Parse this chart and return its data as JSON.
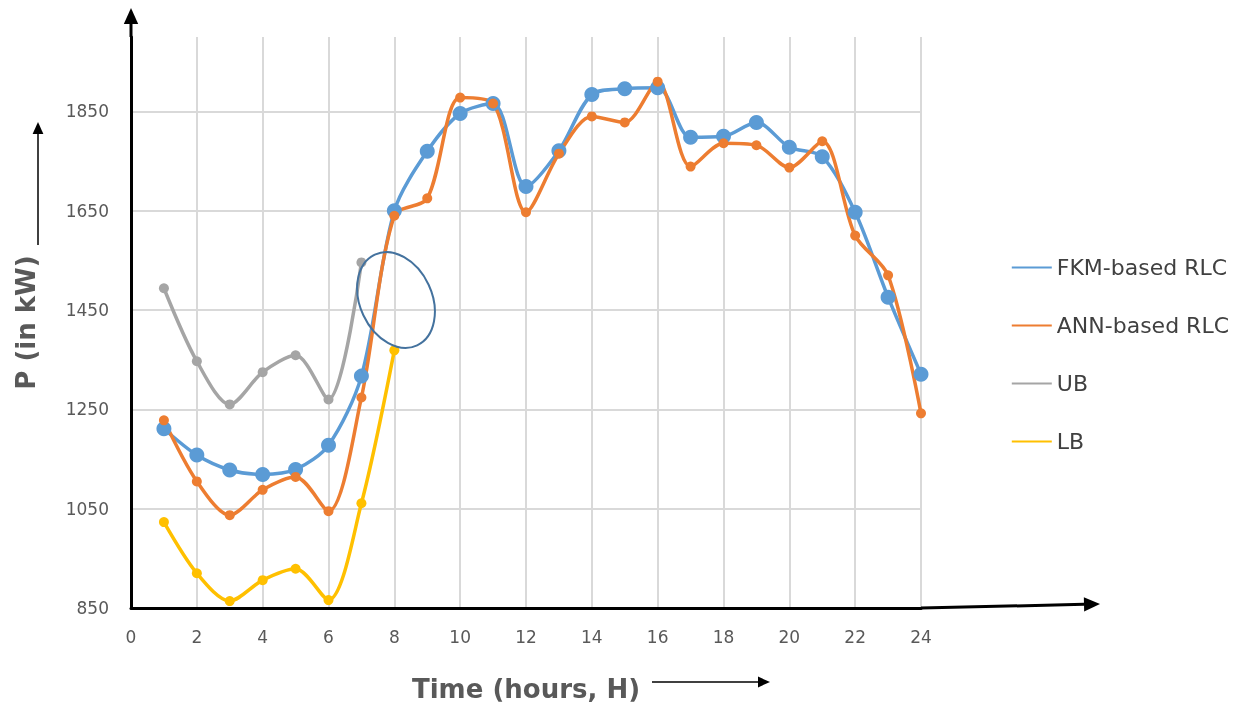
{
  "chart_data": {
    "type": "line",
    "xlabel": "Time (hours, H)",
    "ylabel": "P (in kW)",
    "x": [
      1,
      2,
      3,
      4,
      5,
      6,
      7,
      8,
      9,
      10,
      11,
      12,
      13,
      14,
      15,
      16,
      17,
      18,
      19,
      20,
      21,
      22,
      23,
      24
    ],
    "series": [
      {
        "name": "FKM-based RLC",
        "color": "#5b9bd5",
        "values": [
          1211,
          1158,
          1128,
          1119,
          1129,
          1178,
          1317,
          1650,
          1770,
          1846,
          1866,
          1699,
          1771,
          1884,
          1896,
          1898,
          1798,
          1800,
          1828,
          1778,
          1759,
          1647,
          1476,
          1321
        ]
      },
      {
        "name": "ANN-based RLC",
        "color": "#ed7d31",
        "values": [
          1228,
          1105,
          1037,
          1088,
          1114,
          1045,
          1274,
          1640,
          1675,
          1878,
          1866,
          1647,
          1765,
          1840,
          1828,
          1910,
          1739,
          1786,
          1782,
          1737,
          1790,
          1600,
          1520,
          1242
        ]
      },
      {
        "name": "UB",
        "color": "#a5a5a5",
        "values": [
          1494,
          1347,
          1260,
          1325,
          1359,
          1270,
          1546,
          null,
          null,
          null,
          null,
          null,
          null,
          null,
          null,
          null,
          null,
          null,
          null,
          null,
          null,
          null,
          null,
          null
        ]
      },
      {
        "name": "LB",
        "color": "#ffc000",
        "values": [
          1023,
          920,
          864,
          906,
          929,
          866,
          1061,
          1369,
          null,
          null,
          null,
          null,
          null,
          null,
          null,
          null,
          null,
          null,
          null,
          null,
          null,
          null,
          null,
          null
        ]
      }
    ],
    "xlim": [
      0,
      24
    ],
    "xticks": [
      0,
      2,
      4,
      6,
      8,
      10,
      12,
      14,
      16,
      18,
      20,
      22,
      24
    ],
    "ylim": [
      850,
      2000
    ],
    "yticks": [
      850,
      1050,
      1250,
      1450,
      1650,
      1850
    ],
    "grid": true,
    "legend": "right",
    "marker": "circle",
    "line_style": "solid"
  }
}
